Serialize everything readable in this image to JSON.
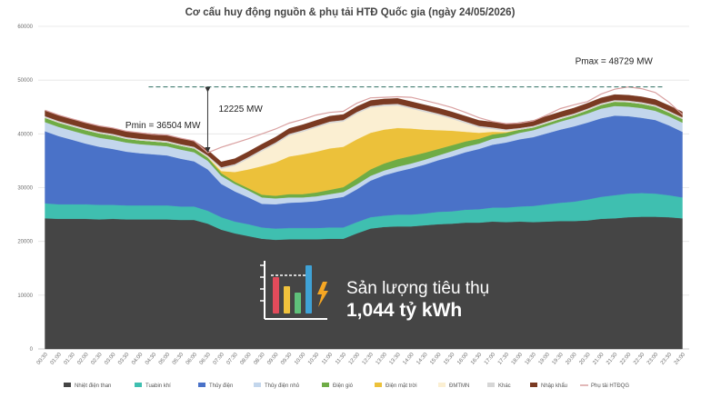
{
  "chart_data": {
    "type": "area",
    "title": "Cơ cấu huy động nguồn & phụ tải HTĐ Quốc gia (ngày 24/05/2026)",
    "ylim": [
      0,
      60000
    ],
    "yticks": [
      "0",
      "10000",
      "20000",
      "30000",
      "40000",
      "50000",
      "60000"
    ],
    "grid": true,
    "legend_position": "bottom",
    "x": [
      "00:30",
      "01:00",
      "01:30",
      "02:00",
      "02:30",
      "03:00",
      "03:30",
      "04:00",
      "04:30",
      "05:00",
      "05:30",
      "06:00",
      "06:30",
      "07:00",
      "07:30",
      "08:00",
      "08:30",
      "09:00",
      "09:30",
      "10:00",
      "10:30",
      "11:00",
      "11:30",
      "12:00",
      "12:30",
      "13:00",
      "13:30",
      "14:00",
      "14:30",
      "15:00",
      "15:30",
      "16:00",
      "16:30",
      "17:00",
      "17:30",
      "18:00",
      "18:30",
      "19:00",
      "19:30",
      "20:00",
      "20:30",
      "21:00",
      "21:30",
      "22:00",
      "22:30",
      "23:00",
      "23:30",
      "24:00"
    ],
    "series": [
      {
        "name": "Nhiệt điện than",
        "color": "#454545",
        "values": [
          24300,
          24200,
          24200,
          24200,
          24100,
          24200,
          24100,
          24100,
          24100,
          24100,
          24000,
          24000,
          23300,
          22200,
          21500,
          21000,
          20500,
          20300,
          20400,
          20400,
          20400,
          20500,
          20500,
          21500,
          22400,
          22700,
          22800,
          22800,
          23000,
          23200,
          23300,
          23500,
          23500,
          23700,
          23600,
          23700,
          23600,
          23700,
          23800,
          23800,
          23900,
          24200,
          24300,
          24500,
          24600,
          24600,
          24500,
          24300
        ]
      },
      {
        "name": "Tuabin khí",
        "color": "#3fbfb0",
        "values": [
          2800,
          2700,
          2700,
          2700,
          2700,
          2600,
          2600,
          2600,
          2600,
          2600,
          2500,
          2500,
          2400,
          2300,
          2200,
          2200,
          2100,
          2100,
          2100,
          2100,
          2100,
          2100,
          2100,
          2100,
          2100,
          2100,
          2200,
          2200,
          2200,
          2300,
          2300,
          2400,
          2500,
          2600,
          2700,
          2800,
          3000,
          3200,
          3400,
          3600,
          3900,
          4100,
          4300,
          4400,
          4400,
          4300,
          4100,
          3900
        ]
      },
      {
        "name": "Thủy điện",
        "color": "#4a72c8",
        "values": [
          13400,
          12700,
          12000,
          11300,
          10800,
          10400,
          10000,
          9700,
          9500,
          9300,
          8900,
          8400,
          7700,
          6200,
          5600,
          5000,
          4400,
          4500,
          4700,
          4800,
          5000,
          5300,
          5700,
          6100,
          6800,
          7500,
          8000,
          8600,
          9100,
          9600,
          10200,
          10700,
          11200,
          11700,
          12100,
          12500,
          12800,
          13200,
          13600,
          14000,
          14300,
          14600,
          14800,
          14400,
          14000,
          13700,
          13000,
          12200
        ]
      },
      {
        "name": "Thủy điện nhỏ",
        "color": "#c3d6ec",
        "values": [
          1700,
          1700,
          1700,
          1700,
          1700,
          1700,
          1700,
          1700,
          1700,
          1700,
          1700,
          1700,
          1600,
          1500,
          1400,
          1300,
          1200,
          1100,
          1000,
          900,
          900,
          900,
          900,
          900,
          900,
          900,
          900,
          900,
          900,
          900,
          1000,
          1000,
          1000,
          1100,
          1100,
          1200,
          1300,
          1400,
          1500,
          1600,
          1700,
          1800,
          1800,
          1800,
          1800,
          1700,
          1700,
          1700
        ]
      },
      {
        "name": "Điện gió",
        "color": "#6fac46",
        "values": [
          800,
          800,
          800,
          800,
          800,
          800,
          700,
          700,
          700,
          700,
          700,
          700,
          600,
          500,
          400,
          400,
          500,
          500,
          600,
          600,
          700,
          800,
          900,
          1100,
          1200,
          1300,
          1400,
          1400,
          1300,
          1200,
          1100,
          1000,
          900,
          800,
          700,
          600,
          500,
          500,
          500,
          500,
          600,
          700,
          800,
          800,
          800,
          800,
          700,
          700
        ]
      },
      {
        "name": "Điện mặt trời",
        "color": "#ecc13a",
        "values": [
          0,
          0,
          0,
          0,
          0,
          0,
          0,
          0,
          0,
          0,
          0,
          0,
          50,
          400,
          1800,
          3500,
          5300,
          6200,
          7000,
          7400,
          7600,
          7700,
          7500,
          7300,
          6800,
          6300,
          5800,
          5100,
          4300,
          3500,
          2700,
          1800,
          1100,
          500,
          150,
          0,
          0,
          0,
          0,
          0,
          0,
          0,
          0,
          0,
          0,
          0,
          0,
          0
        ]
      },
      {
        "name": "ĐMTMN",
        "color": "#fbefd2",
        "values": [
          0,
          0,
          0,
          0,
          0,
          0,
          0,
          0,
          0,
          0,
          0,
          0,
          50,
          400,
          1200,
          2000,
          2800,
          3400,
          3900,
          4200,
          4500,
          4700,
          4700,
          4800,
          4700,
          4400,
          4200,
          3700,
          3300,
          2800,
          2200,
          1600,
          1000,
          500,
          200,
          0,
          0,
          0,
          0,
          0,
          0,
          0,
          0,
          0,
          0,
          0,
          0,
          0
        ]
      },
      {
        "name": "Khác",
        "color": "#d6d6d6",
        "values": [
          300,
          300,
          300,
          300,
          300,
          300,
          300,
          300,
          300,
          300,
          300,
          300,
          300,
          300,
          300,
          300,
          300,
          300,
          300,
          300,
          300,
          300,
          300,
          300,
          300,
          300,
          300,
          300,
          300,
          300,
          300,
          300,
          300,
          300,
          300,
          300,
          300,
          300,
          300,
          300,
          300,
          300,
          300,
          300,
          300,
          300,
          300,
          300
        ]
      },
      {
        "name": "Nhập khẩu",
        "color": "#7a3a22",
        "values": [
          1100,
          1100,
          1100,
          1100,
          1100,
          1100,
          1100,
          1100,
          1100,
          1100,
          1100,
          1100,
          1000,
          1000,
          1000,
          1000,
          1000,
          1000,
          1000,
          1000,
          1000,
          1000,
          1000,
          1000,
          1000,
          1000,
          1000,
          1000,
          1000,
          1000,
          1000,
          1000,
          1000,
          1000,
          1000,
          1000,
          1000,
          1000,
          1000,
          1000,
          1000,
          1000,
          1000,
          1000,
          1000,
          1000,
          1000,
          1000
        ]
      },
      {
        "name": "Phụ tải HTĐQG",
        "color": "#d9a0a0",
        "type": "line",
        "values": [
          44400,
          43500,
          42800,
          42100,
          41500,
          41100,
          40500,
          40200,
          39900,
          39800,
          39200,
          38700,
          36504,
          37500,
          38300,
          39100,
          40000,
          40900,
          42000,
          42700,
          43500,
          44000,
          44200,
          45700,
          46700,
          46800,
          46900,
          46800,
          46200,
          45600,
          44900,
          44000,
          43000,
          42300,
          41900,
          42000,
          42400,
          43500,
          44700,
          45400,
          46000,
          47400,
          48300,
          48729,
          48400,
          47700,
          45900,
          43600
        ]
      }
    ],
    "annotations": {
      "pmin": "Pmin = 36504 MW",
      "pmax": "Pmax = 48729 MW",
      "diff": "12225 MW"
    },
    "pmin_index": 12,
    "pmax_index": 43
  },
  "kpi": {
    "label": "Sản lượng tiêu thụ",
    "value": "1,044 tỷ kWh"
  }
}
